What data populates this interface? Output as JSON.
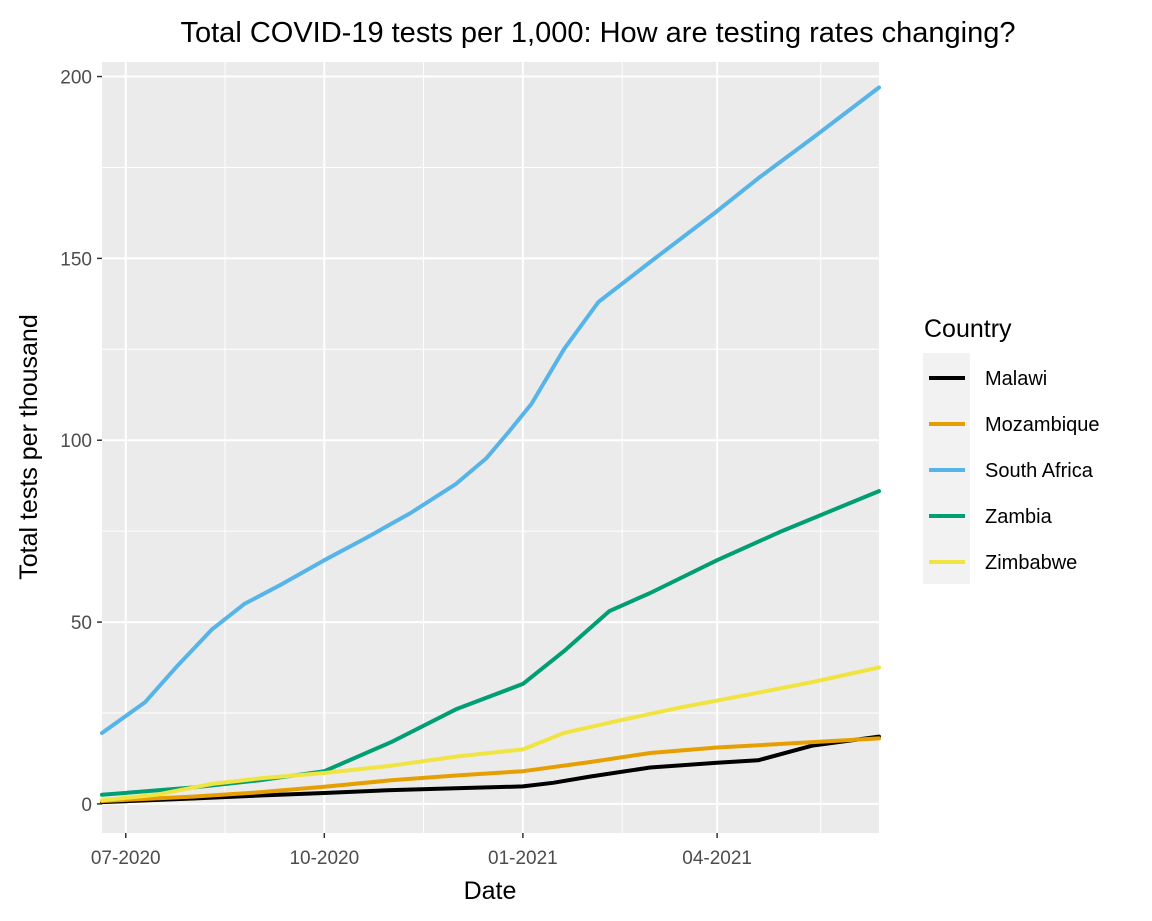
{
  "chart_data": {
    "type": "line",
    "title": "Total COVID-19 tests per 1,000: How are testing rates changing?",
    "xlabel": "Date",
    "ylabel": "Total tests per thousand",
    "xlim": [
      "2020-06-20",
      "2021-06-15"
    ],
    "ylim": [
      -8,
      204
    ],
    "x_ticks": [
      "2020-07-01",
      "2020-10-01",
      "2021-01-01",
      "2021-04-01"
    ],
    "x_tick_labels": [
      "07-2020",
      "10-2020",
      "01-2021",
      "04-2021"
    ],
    "y_ticks": [
      0,
      50,
      100,
      150,
      200
    ],
    "y_tick_labels": [
      "0",
      "50",
      "100",
      "150",
      "200"
    ],
    "grid": true,
    "legend": {
      "title": "Country",
      "position": "right"
    },
    "series": [
      {
        "name": "Malawi",
        "color": "#000000",
        "points": [
          [
            "2020-06-20",
            0.5
          ],
          [
            "2020-08-01",
            1.5
          ],
          [
            "2020-09-01",
            2.3
          ],
          [
            "2020-10-01",
            3.0
          ],
          [
            "2020-11-01",
            3.8
          ],
          [
            "2020-12-01",
            4.3
          ],
          [
            "2021-01-01",
            4.8
          ],
          [
            "2021-01-15",
            5.8
          ],
          [
            "2021-02-01",
            7.5
          ],
          [
            "2021-03-01",
            10.0
          ],
          [
            "2021-04-01",
            11.3
          ],
          [
            "2021-04-20",
            12.0
          ],
          [
            "2021-05-15",
            16.0
          ],
          [
            "2021-06-15",
            18.5
          ]
        ]
      },
      {
        "name": "Mozambique",
        "color": "#E69F00",
        "points": [
          [
            "2020-06-20",
            0.8
          ],
          [
            "2020-08-01",
            2.0
          ],
          [
            "2020-09-01",
            3.2
          ],
          [
            "2020-10-01",
            4.7
          ],
          [
            "2020-11-01",
            6.5
          ],
          [
            "2020-12-01",
            7.8
          ],
          [
            "2021-01-01",
            9.0
          ],
          [
            "2021-02-01",
            11.5
          ],
          [
            "2021-03-01",
            14.0
          ],
          [
            "2021-04-01",
            15.5
          ],
          [
            "2021-05-01",
            16.5
          ],
          [
            "2021-06-15",
            18.0
          ]
        ]
      },
      {
        "name": "South Africa",
        "color": "#56B4E9",
        "points": [
          [
            "2020-06-20",
            19.5
          ],
          [
            "2020-07-10",
            28.0
          ],
          [
            "2020-07-25",
            38.0
          ],
          [
            "2020-08-10",
            48.0
          ],
          [
            "2020-08-25",
            55.0
          ],
          [
            "2020-09-10",
            60.0
          ],
          [
            "2020-10-01",
            67.0
          ],
          [
            "2020-10-20",
            73.0
          ],
          [
            "2020-11-10",
            80.0
          ],
          [
            "2020-12-01",
            88.0
          ],
          [
            "2020-12-15",
            95.0
          ],
          [
            "2020-12-25",
            102.0
          ],
          [
            "2021-01-05",
            110.0
          ],
          [
            "2021-01-20",
            125.0
          ],
          [
            "2021-02-05",
            138.0
          ],
          [
            "2021-03-01",
            149.0
          ],
          [
            "2021-04-01",
            163.0
          ],
          [
            "2021-04-20",
            172.0
          ],
          [
            "2021-05-15",
            183.0
          ],
          [
            "2021-06-15",
            197.0
          ]
        ]
      },
      {
        "name": "Zambia",
        "color": "#009E73",
        "points": [
          [
            "2020-06-20",
            2.5
          ],
          [
            "2020-08-01",
            4.5
          ],
          [
            "2020-09-01",
            6.5
          ],
          [
            "2020-10-01",
            9.0
          ],
          [
            "2020-11-01",
            17.0
          ],
          [
            "2020-12-01",
            26.0
          ],
          [
            "2021-01-01",
            33.0
          ],
          [
            "2021-01-20",
            42.0
          ],
          [
            "2021-02-10",
            53.0
          ],
          [
            "2021-03-01",
            58.0
          ],
          [
            "2021-04-01",
            67.0
          ],
          [
            "2021-05-01",
            75.0
          ],
          [
            "2021-06-15",
            86.0
          ]
        ]
      },
      {
        "name": "Zimbabwe",
        "color": "#F0E442",
        "points": [
          [
            "2020-06-20",
            1.0
          ],
          [
            "2020-07-15",
            2.5
          ],
          [
            "2020-08-10",
            5.5
          ],
          [
            "2020-09-01",
            7.0
          ],
          [
            "2020-10-01",
            8.5
          ],
          [
            "2020-11-01",
            10.5
          ],
          [
            "2020-12-01",
            13.0
          ],
          [
            "2021-01-01",
            15.0
          ],
          [
            "2021-01-20",
            19.5
          ],
          [
            "2021-02-15",
            23.0
          ],
          [
            "2021-03-15",
            26.5
          ],
          [
            "2021-04-15",
            30.0
          ],
          [
            "2021-05-15",
            33.5
          ],
          [
            "2021-06-15",
            37.5
          ]
        ]
      }
    ]
  }
}
